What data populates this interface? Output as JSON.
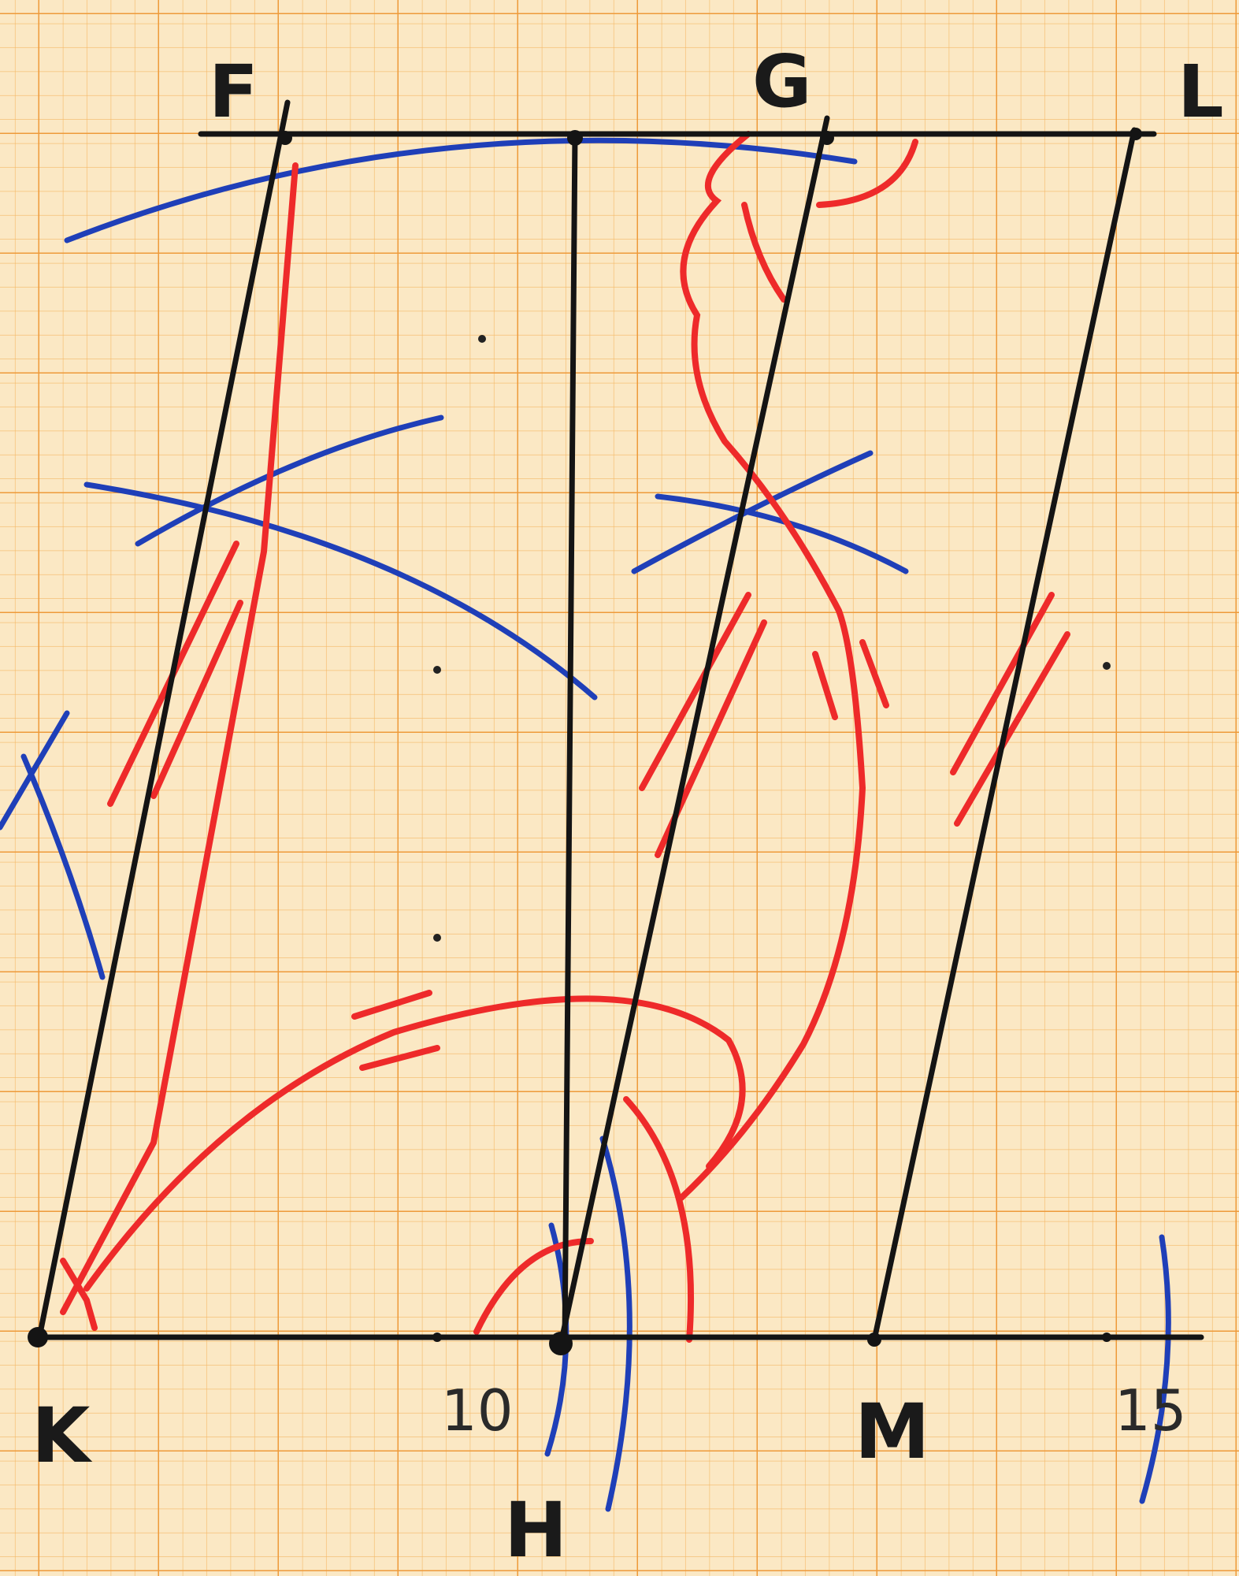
{
  "colors": {
    "paper": "#fbe8c4",
    "grid_minor": "#f4b866",
    "grid_major": "#ee9a3a",
    "ink": "#141414",
    "construction_blue": "#1f3fb8",
    "marks_red": "#ee2a2a"
  },
  "points": {
    "F": "F",
    "G": "G",
    "L": "L",
    "K": "K",
    "H": "H",
    "M": "M"
  },
  "axis_ticks": {
    "t10": "10",
    "t15": "15"
  }
}
